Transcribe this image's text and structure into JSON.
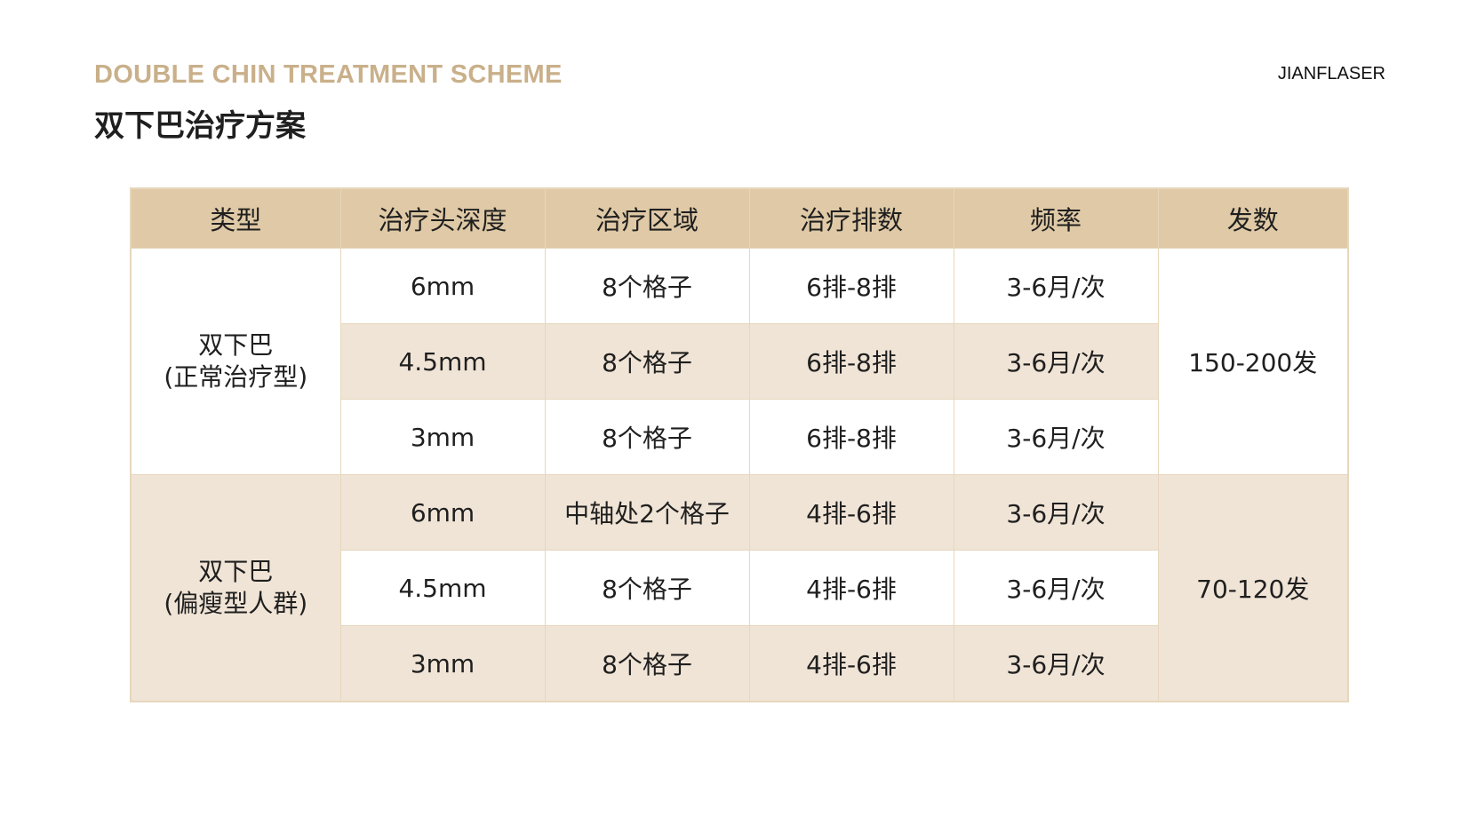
{
  "header": {
    "subtitle_en": "DOUBLE CHIN TREATMENT SCHEME",
    "title_cn": "双下巴治疗方案",
    "brand": "JIANFLASER"
  },
  "table": {
    "columns": [
      "类型",
      "治疗头深度",
      "治疗区域",
      "治疗排数",
      "频率",
      "发数"
    ],
    "groups": [
      {
        "type_line1": "双下巴",
        "type_line2": "(正常治疗型)",
        "shots": "150-200发",
        "rows": [
          {
            "depth": "6mm",
            "area": "8个格子",
            "rows": "6排-8排",
            "frequency": "3-6月/次"
          },
          {
            "depth": "4.5mm",
            "area": "8个格子",
            "rows": "6排-8排",
            "frequency": "3-6月/次"
          },
          {
            "depth": "3mm",
            "area": "8个格子",
            "rows": "6排-8排",
            "frequency": "3-6月/次"
          }
        ]
      },
      {
        "type_line1": "双下巴",
        "type_line2": "(偏瘦型人群)",
        "shots": "70-120发",
        "rows": [
          {
            "depth": "6mm",
            "area": "中轴处2个格子",
            "rows": "4排-6排",
            "frequency": "3-6月/次"
          },
          {
            "depth": "4.5mm",
            "area": "8个格子",
            "rows": "4排-6排",
            "frequency": "3-6月/次"
          },
          {
            "depth": "3mm",
            "area": "8个格子",
            "rows": "4排-6排",
            "frequency": "3-6月/次"
          }
        ]
      }
    ]
  },
  "colors": {
    "accent_gold": "#c9b08a",
    "header_bg": "#dfc9a6",
    "row_beige": "#f0e4d6",
    "border": "#e6d7bd"
  }
}
